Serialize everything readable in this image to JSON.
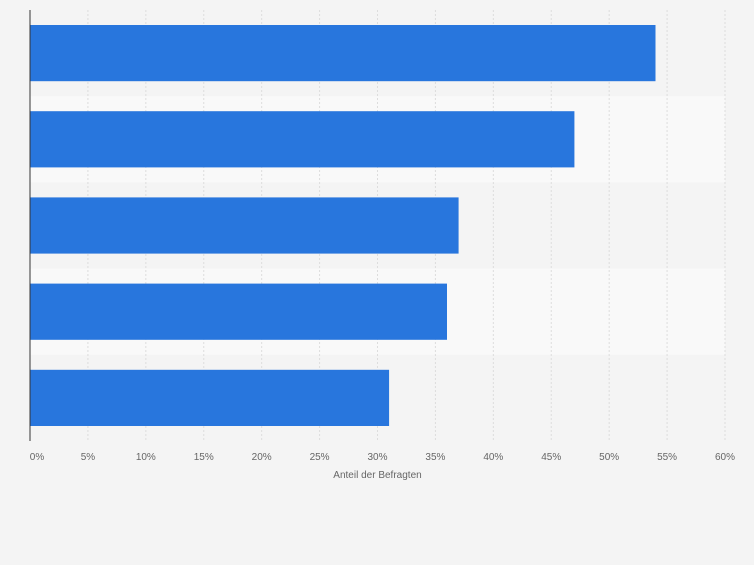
{
  "colors": {
    "bar": "#2876dd",
    "band_light": "#f9f9f9",
    "band_dark": "#f4f4f4",
    "grid": "#dddddd",
    "axis": "#333333",
    "tick_text": "#666666"
  },
  "chart_data": {
    "type": "bar",
    "orientation": "horizontal",
    "categories": [
      "",
      "",
      "",
      "",
      ""
    ],
    "values": [
      54,
      47,
      37,
      36,
      31
    ],
    "value_unit": "%",
    "xlabel": "Anteil der Befragten",
    "ylabel": "",
    "xlim": [
      0,
      60
    ],
    "xticks": [
      "0%",
      "5%",
      "10%",
      "15%",
      "20%",
      "25%",
      "30%",
      "35%",
      "40%",
      "45%",
      "50%",
      "55%",
      "60%"
    ],
    "grid": true,
    "legend": "none"
  }
}
